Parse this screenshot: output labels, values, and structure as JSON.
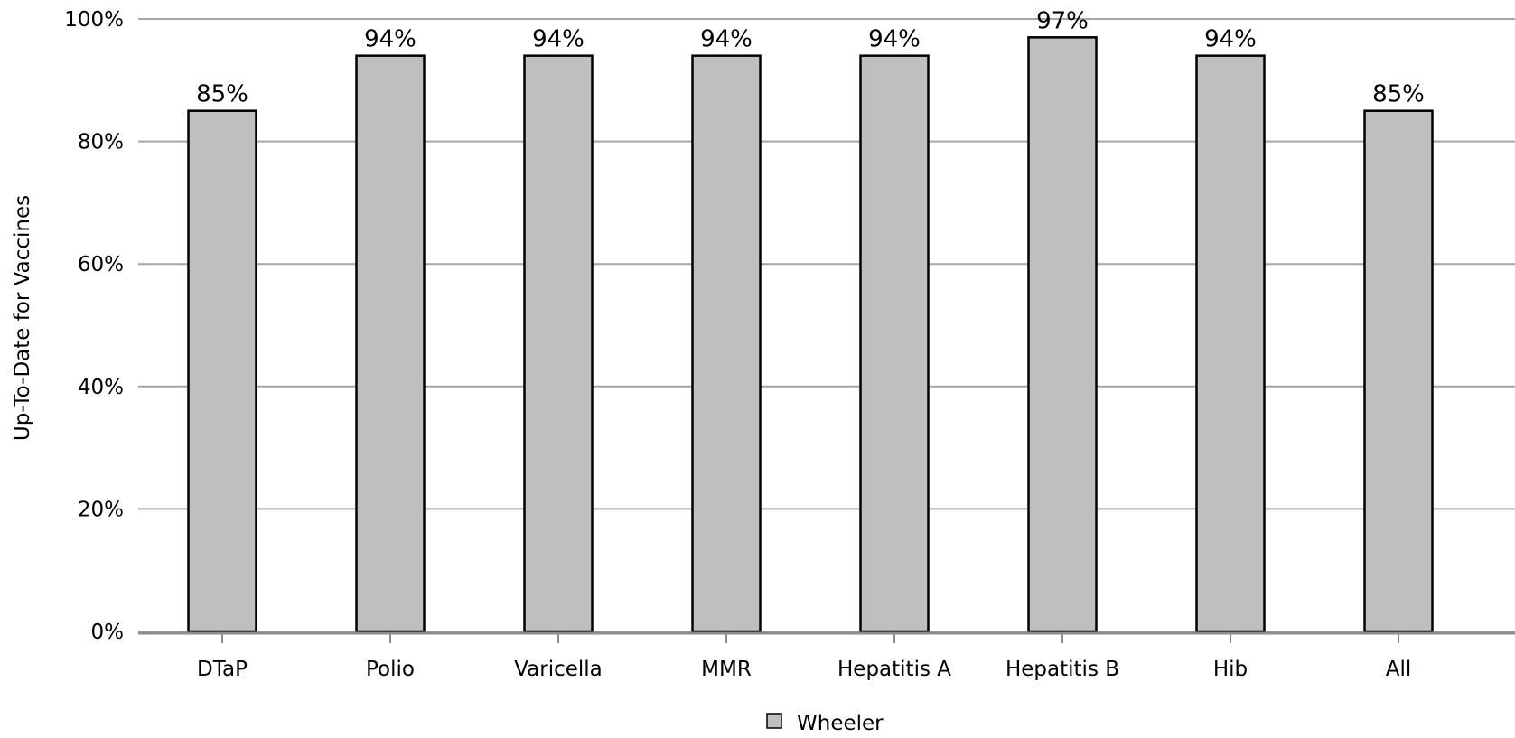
{
  "chart_data": {
    "type": "bar",
    "categories": [
      "DTaP",
      "Polio",
      "Varicella",
      "MMR",
      "Hepatitis A",
      "Hepatitis B",
      "Hib",
      "All"
    ],
    "series": [
      {
        "name": "Wheeler",
        "values": [
          85,
          94,
          94,
          94,
          94,
          97,
          94,
          85
        ],
        "color": "#bfbfbf"
      }
    ],
    "data_labels": [
      "85%",
      "94%",
      "94%",
      "94%",
      "94%",
      "97%",
      "94%",
      "85%"
    ],
    "title": "",
    "xlabel": "",
    "ylabel": "Up-To-Date for Vaccines",
    "ylim": [
      0,
      100
    ],
    "yticks": [
      0,
      20,
      40,
      60,
      80,
      100
    ],
    "ytick_labels": [
      "0%",
      "20%",
      "40%",
      "60%",
      "80%",
      "100%"
    ],
    "grid": true,
    "gridline_color": "#a6a6a6",
    "bar_edge_color": "#000000",
    "legend": {
      "position": "bottom-center",
      "entries": [
        "Wheeler"
      ]
    }
  }
}
